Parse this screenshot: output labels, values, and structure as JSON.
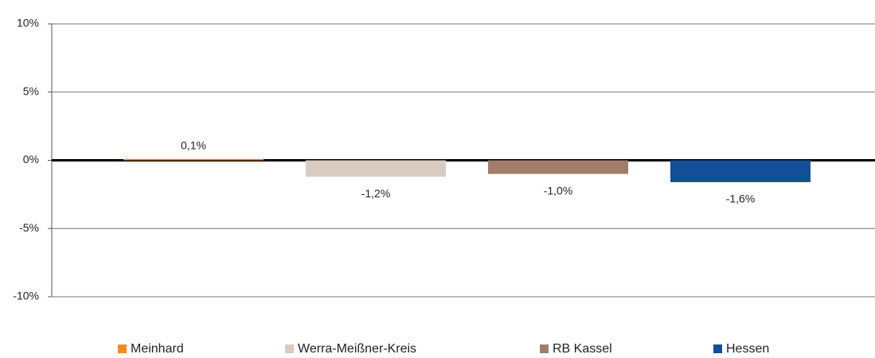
{
  "chart_data": {
    "type": "bar",
    "categories": [
      null
    ],
    "series": [
      {
        "name": "Meinhard",
        "color": "#f28c1e",
        "values": [
          0.1
        ],
        "value_labels": [
          "0,1%"
        ]
      },
      {
        "name": "Werra-Meißner-Kreis",
        "color": "#d9cbc0",
        "values": [
          -1.2
        ],
        "value_labels": [
          "-1,2%"
        ]
      },
      {
        "name": "RB Kassel",
        "color": "#a27e6a",
        "values": [
          -1.0
        ],
        "value_labels": [
          "-1,0%"
        ]
      },
      {
        "name": "Hessen",
        "color": "#134f96",
        "values": [
          -1.6
        ],
        "value_labels": [
          "-1,6%"
        ]
      }
    ],
    "ylim": [
      -10,
      10
    ],
    "yticks": [
      {
        "value": 10,
        "label": "10%"
      },
      {
        "value": 5,
        "label": "5%"
      },
      {
        "value": 0,
        "label": "0%"
      },
      {
        "value": -5,
        "label": "-5%"
      },
      {
        "value": -10,
        "label": "-10%"
      }
    ],
    "grid": true,
    "legend": "bottom"
  }
}
